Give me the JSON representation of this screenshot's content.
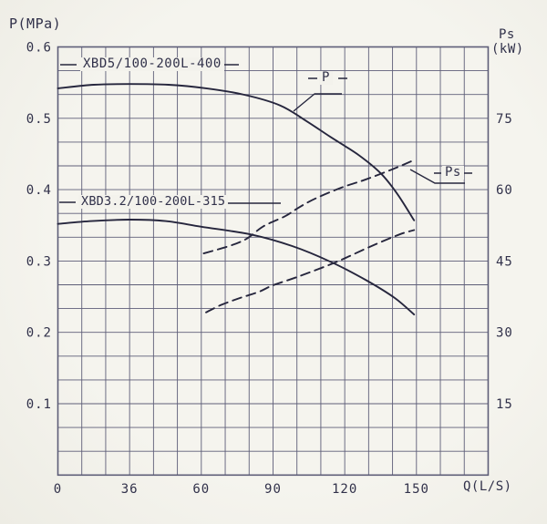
{
  "axes": {
    "left_title": "P(MPa)",
    "right_title_line1": "Ps",
    "right_title_line2": "(kW)",
    "bottom_title": "Q(L/S)"
  },
  "curve_labels": {
    "pump1": "XBD5/100-200L-400",
    "pump2": "XBD3.2/100-200L-315",
    "pressure": "P",
    "power": "Ps"
  },
  "colors": {
    "paper": "#f3f2ec",
    "grid": "#5e5e78",
    "ink": "#26263d",
    "text": "#31314a"
  },
  "chart_data": {
    "type": "line",
    "title": "Pump performance curves",
    "xlabel": "Q(L/S)",
    "ylabel_left": "P(MPa)",
    "ylabel_right": "Ps(kW)",
    "x_ticks": [
      0,
      36,
      60,
      90,
      120,
      150
    ],
    "x_tick_labels": [
      "0",
      "36",
      "60",
      "90",
      "120",
      "150"
    ],
    "y_left_ticks": [
      0.1,
      0.2,
      0.3,
      0.4,
      0.5,
      0.6
    ],
    "y_left_tick_labels": [
      "0.1",
      "0.2",
      "0.3",
      "0.4",
      "0.5",
      "0.6"
    ],
    "y_right_ticks": [
      15,
      30,
      45,
      60,
      75
    ],
    "y_right_tick_labels": [
      "15",
      "30",
      "45",
      "60",
      "75"
    ],
    "y_left_range": [
      0,
      0.6
    ],
    "y_right_range": [
      0,
      90
    ],
    "grid": {
      "visible": true,
      "cols": 18,
      "rows": 18
    },
    "legend_position": "none",
    "series": [
      {
        "name": "XBD5/100-200L-400 pressure (P)",
        "axis": "left",
        "style": "solid",
        "units": "MPa",
        "q": [
          0,
          18,
          36,
          49,
          62,
          78,
          93,
          104,
          114,
          126,
          135,
          142,
          149
        ],
        "p": [
          0.542,
          0.547,
          0.548,
          0.547,
          0.542,
          0.533,
          0.518,
          0.496,
          0.474,
          0.448,
          0.423,
          0.394,
          0.357
        ]
      },
      {
        "name": "XBD3.2/100-200L-315 pressure (P)",
        "axis": "left",
        "style": "solid",
        "units": "MPa",
        "q": [
          0,
          17,
          36,
          48,
          60,
          81,
          98,
          114,
          129,
          141,
          149
        ],
        "p": [
          0.352,
          0.356,
          0.358,
          0.356,
          0.348,
          0.337,
          0.321,
          0.299,
          0.273,
          0.248,
          0.225
        ]
      },
      {
        "name": "XBD5/100-200L-400 shaft power (Ps)",
        "axis": "right",
        "style": "dashed",
        "units": "kW",
        "q": [
          61,
          72,
          79,
          86,
          95,
          101,
          108,
          119,
          128,
          140,
          148
        ],
        "kw": [
          46.6,
          48.2,
          49.7,
          52.3,
          54.4,
          56.3,
          58.2,
          60.5,
          62.0,
          64.3,
          66.0
        ]
      },
      {
        "name": "XBD3.2/100-200L-315 shaft power (Ps)",
        "axis": "right",
        "style": "dashed",
        "units": "kW",
        "q": [
          62,
          68,
          76,
          84,
          90,
          101,
          116,
          131,
          143,
          149
        ],
        "kw": [
          34.2,
          35.7,
          37.2,
          38.5,
          39.9,
          41.8,
          44.7,
          48.1,
          50.6,
          51.5
        ]
      }
    ],
    "annotations": [
      {
        "text": "XBD5/100-200L-400",
        "target": "series 0",
        "location": "top-left inside plot"
      },
      {
        "text": "XBD3.2/100-200L-315",
        "target": "series 1",
        "location": "above series 1 start"
      },
      {
        "text": "P",
        "target": "series 0",
        "location": "leader line to pressure curve"
      },
      {
        "text": "Ps",
        "target": "series 2",
        "location": "leader line to dashed power curve"
      }
    ]
  }
}
